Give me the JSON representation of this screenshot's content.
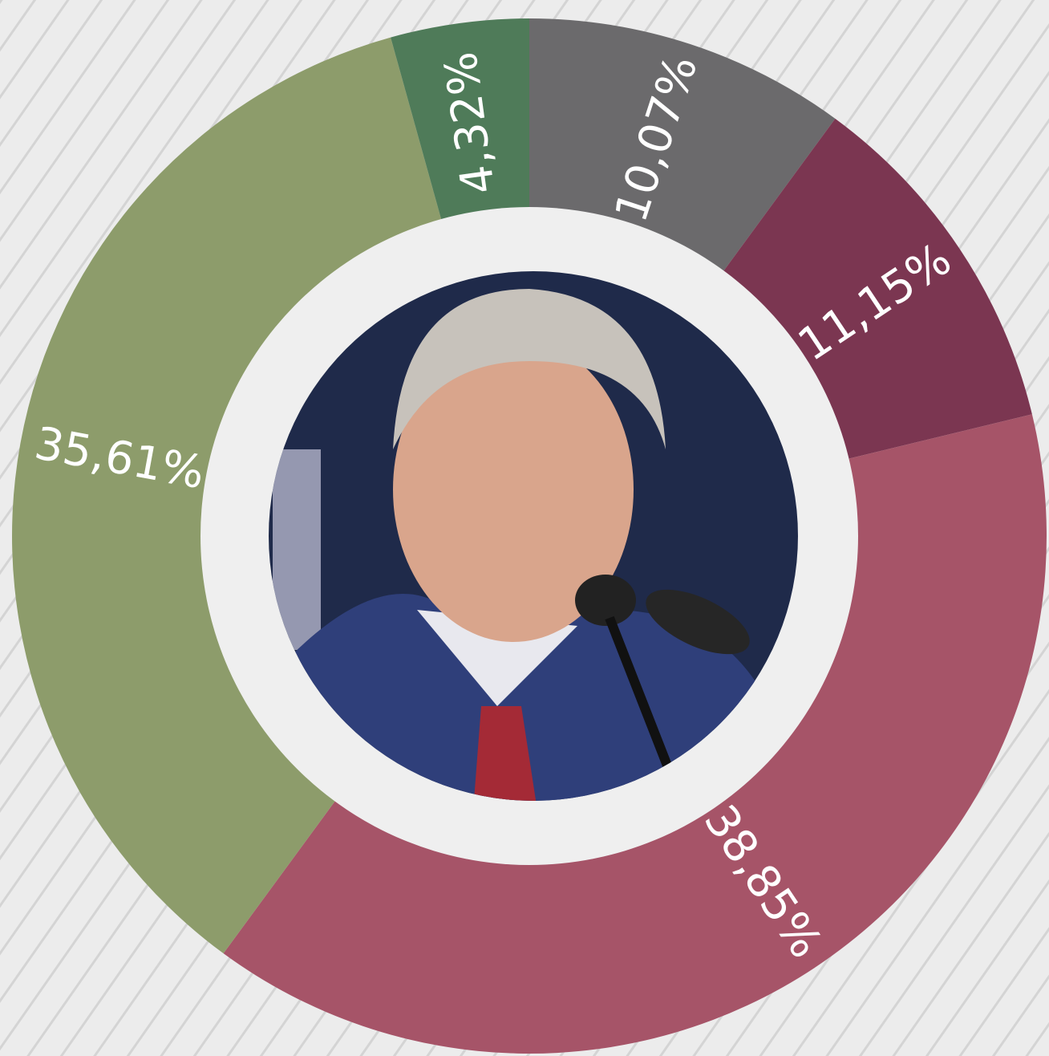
{
  "chart_data": {
    "type": "pie",
    "categories": [
      null,
      null,
      null,
      null,
      null
    ],
    "values": [
      10.07,
      11.15,
      38.85,
      35.61,
      4.32
    ],
    "value_labels": [
      "10,07%",
      "11,15%",
      "38,85%",
      "35,61%",
      "4,32%"
    ],
    "colors": [
      "#6b6a6c",
      "#7b3651",
      "#a65468",
      "#8d9c6b",
      "#4f7b59"
    ]
  }
}
